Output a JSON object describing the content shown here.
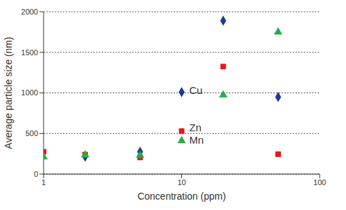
{
  "chart_data": {
    "type": "scatter",
    "x_label": "Concentration (ppm)",
    "y_label": "Average particle size (nm)",
    "log": "x",
    "grid": true,
    "xlim": [
      1,
      100
    ],
    "xticks": [
      1,
      10,
      100
    ],
    "ylim": [
      0,
      2000
    ],
    "yticks": [
      0,
      500,
      1000,
      1500,
      2000
    ],
    "series": [
      {
        "name": "Cu",
        "color": "#1f3a93",
        "marker": "diamond",
        "x": [
          2,
          5,
          10,
          20,
          50
        ],
        "values": [
          215,
          275,
          1010,
          1890,
          950
        ]
      },
      {
        "name": "Zn",
        "color": "#e8151b",
        "marker": "square",
        "x": [
          1,
          2,
          5,
          10,
          20,
          50
        ],
        "values": [
          275,
          240,
          205,
          530,
          1325,
          245
        ]
      },
      {
        "name": "Mn",
        "color": "#2aab4a",
        "marker": "triangle",
        "x": [
          1,
          2,
          5,
          10,
          20,
          50
        ],
        "values": [
          210,
          235,
          230,
          410,
          975,
          1750
        ]
      }
    ],
    "annotations": [
      {
        "text": "Cu",
        "x": 10,
        "y": 1030
      },
      {
        "text": "Zn",
        "x": 10,
        "y": 570
      },
      {
        "text": "Mn",
        "x": 10,
        "y": 420
      }
    ]
  }
}
